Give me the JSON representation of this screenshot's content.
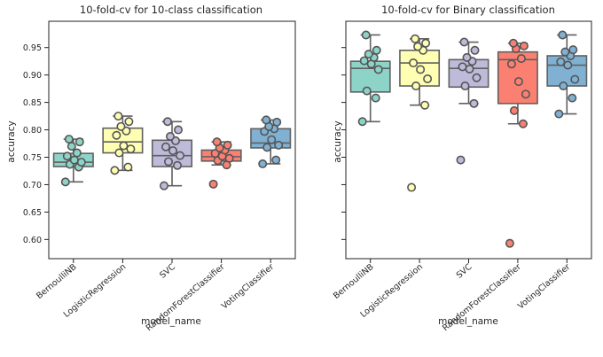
{
  "chart_data": [
    {
      "type": "box",
      "title": "10-fold-cv for 10-class classification",
      "xlabel": "model_name",
      "ylabel": "accuracy",
      "ylim": [
        0.565,
        0.998
      ],
      "yticks": [
        "0.60",
        "0.65",
        "0.70",
        "0.75",
        "0.80",
        "0.85",
        "0.90",
        "0.95"
      ],
      "show_yticklabels": true,
      "grid": false,
      "categories": [
        "BernoulliNB",
        "LogisticRegression",
        "SVC",
        "RandomForestClassifier",
        "VotingClassifier"
      ],
      "boxes": [
        {
          "whislo": 0.705,
          "q1": 0.733,
          "med": 0.741,
          "q3": 0.757,
          "whishi": 0.783
        },
        {
          "whislo": 0.726,
          "q1": 0.758,
          "med": 0.778,
          "q3": 0.803,
          "whishi": 0.825
        },
        {
          "whislo": 0.698,
          "q1": 0.733,
          "med": 0.753,
          "q3": 0.781,
          "whishi": 0.815
        },
        {
          "whislo": 0.736,
          "q1": 0.743,
          "med": 0.751,
          "q3": 0.763,
          "whishi": 0.778
        },
        {
          "whislo": 0.738,
          "q1": 0.767,
          "med": 0.776,
          "q3": 0.802,
          "whishi": 0.818
        }
      ],
      "points": [
        [
          0.705,
          0.732,
          0.737,
          0.741,
          0.745,
          0.752,
          0.758,
          0.77,
          0.778,
          0.783
        ],
        [
          0.726,
          0.732,
          0.758,
          0.765,
          0.771,
          0.79,
          0.798,
          0.806,
          0.815,
          0.825
        ],
        [
          0.698,
          0.735,
          0.742,
          0.753,
          0.762,
          0.769,
          0.78,
          0.788,
          0.8,
          0.815
        ],
        [
          0.701,
          0.736,
          0.744,
          0.748,
          0.752,
          0.757,
          0.763,
          0.767,
          0.772,
          0.778
        ],
        [
          0.738,
          0.745,
          0.768,
          0.772,
          0.782,
          0.797,
          0.802,
          0.806,
          0.814,
          0.818
        ]
      ]
    },
    {
      "type": "box",
      "title": "10-fold-cv for Binary classification",
      "xlabel": "model_name",
      "ylabel": "accuracy",
      "ylim": [
        0.565,
        0.998
      ],
      "yticks": [
        "0.60",
        "0.65",
        "0.70",
        "0.75",
        "0.80",
        "0.85",
        "0.90",
        "0.95"
      ],
      "show_yticklabels": false,
      "grid": false,
      "categories": [
        "BernoulliNB",
        "LogisticRegression",
        "SVC",
        "RandomForestClassifier",
        "VotingClassifier"
      ],
      "boxes": [
        {
          "whislo": 0.815,
          "q1": 0.869,
          "med": 0.912,
          "q3": 0.925,
          "whishi": 0.973
        },
        {
          "whislo": 0.845,
          "q1": 0.88,
          "med": 0.922,
          "q3": 0.945,
          "whishi": 0.966
        },
        {
          "whislo": 0.848,
          "q1": 0.878,
          "med": 0.912,
          "q3": 0.928,
          "whishi": 0.96
        },
        {
          "whislo": 0.811,
          "q1": 0.848,
          "med": 0.928,
          "q3": 0.942,
          "whishi": 0.958
        },
        {
          "whislo": 0.829,
          "q1": 0.88,
          "med": 0.918,
          "q3": 0.935,
          "whishi": 0.973
        }
      ],
      "points": [
        [
          0.815,
          0.858,
          0.871,
          0.91,
          0.92,
          0.926,
          0.932,
          0.938,
          0.945,
          0.973
        ],
        [
          0.695,
          0.845,
          0.88,
          0.893,
          0.91,
          0.922,
          0.945,
          0.952,
          0.958,
          0.966
        ],
        [
          0.745,
          0.848,
          0.88,
          0.895,
          0.911,
          0.915,
          0.925,
          0.932,
          0.945,
          0.96
        ],
        [
          0.593,
          0.811,
          0.835,
          0.865,
          0.888,
          0.92,
          0.93,
          0.948,
          0.953,
          0.958
        ],
        [
          0.829,
          0.858,
          0.88,
          0.892,
          0.918,
          0.924,
          0.935,
          0.942,
          0.946,
          0.973
        ]
      ]
    }
  ],
  "colors": {
    "fills": [
      "#8dd3c7",
      "#ffffb3",
      "#bebada",
      "#fb8072",
      "#80b1d3"
    ],
    "line": "#606060",
    "point_edge": "#555555",
    "axes": "#222222"
  }
}
